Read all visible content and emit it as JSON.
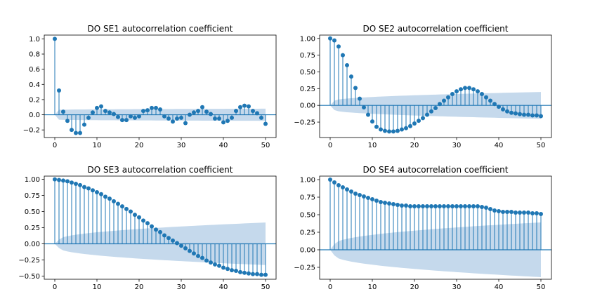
{
  "chart_data": [
    {
      "type": "stem",
      "title": "DO SE1 autocorrelation coefficient",
      "xlabel": "",
      "ylabel": "",
      "xlim": [
        -2.5,
        52.5
      ],
      "ylim": [
        -0.3,
        1.05
      ],
      "xticks": [
        0,
        10,
        20,
        30,
        40,
        50
      ],
      "yticks": [
        -0.2,
        0.0,
        0.2,
        0.4,
        0.6,
        0.8,
        1.0
      ],
      "ytick_labels": [
        "−0.2",
        "0.0",
        "0.2",
        "0.4",
        "0.6",
        "0.8",
        "1.0"
      ],
      "x": [
        0,
        1,
        2,
        3,
        4,
        5,
        6,
        7,
        8,
        9,
        10,
        11,
        12,
        13,
        14,
        15,
        16,
        17,
        18,
        19,
        20,
        21,
        22,
        23,
        24,
        25,
        26,
        27,
        28,
        29,
        30,
        31,
        32,
        33,
        34,
        35,
        36,
        37,
        38,
        39,
        40,
        41,
        42,
        43,
        44,
        45,
        46,
        47,
        48,
        49,
        50
      ],
      "values": [
        1.0,
        0.32,
        0.04,
        -0.08,
        -0.2,
        -0.24,
        -0.24,
        -0.13,
        -0.04,
        0.03,
        0.09,
        0.11,
        0.05,
        0.03,
        0.01,
        -0.03,
        -0.07,
        -0.07,
        -0.02,
        -0.04,
        -0.02,
        0.05,
        0.06,
        0.09,
        0.09,
        0.07,
        -0.02,
        -0.05,
        -0.09,
        -0.05,
        -0.04,
        -0.11,
        0.0,
        0.03,
        0.05,
        0.1,
        0.04,
        0.01,
        -0.05,
        -0.05,
        -0.1,
        -0.08,
        -0.04,
        0.05,
        0.1,
        0.12,
        0.11,
        0.05,
        0.02,
        -0.04,
        -0.12
      ],
      "confidence_band": {
        "0": 0.0,
        "1": 0.065,
        "50": 0.08
      }
    },
    {
      "type": "stem",
      "title": "DO SE2 autocorrelation coefficient",
      "xlabel": "",
      "ylabel": "",
      "xlim": [
        -2.5,
        52.5
      ],
      "ylim": [
        -0.48,
        1.05
      ],
      "xticks": [
        0,
        10,
        20,
        30,
        40,
        50
      ],
      "yticks": [
        -0.25,
        0.0,
        0.25,
        0.5,
        0.75,
        1.0
      ],
      "ytick_labels": [
        "−0.25",
        "0.00",
        "0.25",
        "0.50",
        "0.75",
        "1.00"
      ],
      "x": [
        0,
        1,
        2,
        3,
        4,
        5,
        6,
        7,
        8,
        9,
        10,
        11,
        12,
        13,
        14,
        15,
        16,
        17,
        18,
        19,
        20,
        21,
        22,
        23,
        24,
        25,
        26,
        27,
        28,
        29,
        30,
        31,
        32,
        33,
        34,
        35,
        36,
        37,
        38,
        39,
        40,
        41,
        42,
        43,
        44,
        45,
        46,
        47,
        48,
        49,
        50
      ],
      "values": [
        1.0,
        0.97,
        0.88,
        0.75,
        0.6,
        0.43,
        0.26,
        0.1,
        -0.03,
        -0.14,
        -0.24,
        -0.32,
        -0.36,
        -0.38,
        -0.39,
        -0.39,
        -0.38,
        -0.36,
        -0.34,
        -0.31,
        -0.27,
        -0.23,
        -0.19,
        -0.14,
        -0.09,
        -0.04,
        0.02,
        0.07,
        0.12,
        0.17,
        0.21,
        0.24,
        0.26,
        0.26,
        0.24,
        0.21,
        0.17,
        0.12,
        0.07,
        0.02,
        -0.02,
        -0.06,
        -0.09,
        -0.11,
        -0.12,
        -0.13,
        -0.14,
        -0.14,
        -0.15,
        -0.15,
        -0.16
      ],
      "confidence_band": {
        "0": 0.0,
        "1": 0.07,
        "50": 0.2
      }
    },
    {
      "type": "stem",
      "title": "DO SE3 autocorrelation coefficient",
      "xlabel": "",
      "ylabel": "",
      "xlim": [
        -2.5,
        52.5
      ],
      "ylim": [
        -0.55,
        1.05
      ],
      "xticks": [
        0,
        10,
        20,
        30,
        40,
        50
      ],
      "yticks": [
        -0.5,
        -0.25,
        0.0,
        0.25,
        0.5,
        0.75,
        1.0
      ],
      "ytick_labels": [
        "−0.50",
        "−0.25",
        "0.00",
        "0.25",
        "0.50",
        "0.75",
        "1.00"
      ],
      "x": [
        0,
        1,
        2,
        3,
        4,
        5,
        6,
        7,
        8,
        9,
        10,
        11,
        12,
        13,
        14,
        15,
        16,
        17,
        18,
        19,
        20,
        21,
        22,
        23,
        24,
        25,
        26,
        27,
        28,
        29,
        30,
        31,
        32,
        33,
        34,
        35,
        36,
        37,
        38,
        39,
        40,
        41,
        42,
        43,
        44,
        45,
        46,
        47,
        48,
        49,
        50
      ],
      "values": [
        1.0,
        0.99,
        0.98,
        0.97,
        0.95,
        0.93,
        0.91,
        0.88,
        0.86,
        0.83,
        0.8,
        0.77,
        0.73,
        0.7,
        0.66,
        0.62,
        0.58,
        0.54,
        0.5,
        0.45,
        0.41,
        0.36,
        0.32,
        0.27,
        0.22,
        0.18,
        0.13,
        0.09,
        0.05,
        0.01,
        -0.03,
        -0.07,
        -0.11,
        -0.15,
        -0.19,
        -0.22,
        -0.26,
        -0.29,
        -0.32,
        -0.34,
        -0.37,
        -0.39,
        -0.41,
        -0.42,
        -0.44,
        -0.45,
        -0.46,
        -0.47,
        -0.47,
        -0.48,
        -0.48
      ],
      "confidence_band": {
        "0": 0.0,
        "1": 0.065,
        "50": 0.33
      }
    },
    {
      "type": "stem",
      "title": "DO SE4 autocorrelation coefficient",
      "xlabel": "",
      "ylabel": "",
      "xlim": [
        -2.5,
        52.5
      ],
      "ylim": [
        -0.42,
        1.05
      ],
      "xticks": [
        0,
        10,
        20,
        30,
        40,
        50
      ],
      "yticks": [
        -0.25,
        0.0,
        0.25,
        0.5,
        0.75,
        1.0
      ],
      "ytick_labels": [
        "−0.25",
        "0.00",
        "0.25",
        "0.50",
        "0.75",
        "1.00"
      ],
      "x": [
        0,
        1,
        2,
        3,
        4,
        5,
        6,
        7,
        8,
        9,
        10,
        11,
        12,
        13,
        14,
        15,
        16,
        17,
        18,
        19,
        20,
        21,
        22,
        23,
        24,
        25,
        26,
        27,
        28,
        29,
        30,
        31,
        32,
        33,
        34,
        35,
        36,
        37,
        38,
        39,
        40,
        41,
        42,
        43,
        44,
        45,
        46,
        47,
        48,
        49,
        50
      ],
      "values": [
        1.0,
        0.96,
        0.92,
        0.89,
        0.86,
        0.83,
        0.8,
        0.78,
        0.76,
        0.74,
        0.72,
        0.7,
        0.68,
        0.67,
        0.66,
        0.65,
        0.64,
        0.63,
        0.63,
        0.62,
        0.62,
        0.62,
        0.62,
        0.62,
        0.62,
        0.62,
        0.62,
        0.62,
        0.62,
        0.62,
        0.62,
        0.62,
        0.62,
        0.62,
        0.62,
        0.62,
        0.61,
        0.6,
        0.58,
        0.56,
        0.55,
        0.54,
        0.54,
        0.54,
        0.53,
        0.53,
        0.53,
        0.53,
        0.52,
        0.52,
        0.51
      ],
      "confidence_band": {
        "0": 0.0,
        "1": 0.08,
        "50": 0.39
      }
    }
  ],
  "colors": {
    "stem": "#1f77b4",
    "marker": "#1f77b4",
    "band": "#c5d9ec",
    "axis": "#000000",
    "background": "#ffffff"
  }
}
